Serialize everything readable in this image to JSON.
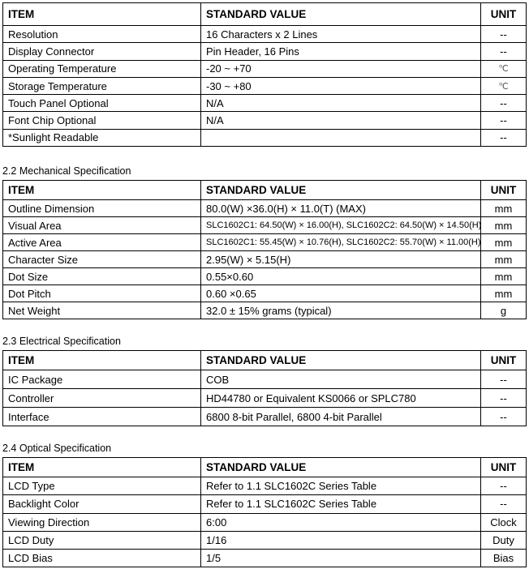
{
  "headers": {
    "item": "ITEM",
    "value": "STANDARD VALUE",
    "unit": "UNIT"
  },
  "tables": [
    {
      "title": "",
      "rows": [
        {
          "item": "Resolution",
          "value": "16 Characters x 2 Lines",
          "unit": "--"
        },
        {
          "item": "Display Connector",
          "value": "Pin Header, 16 Pins",
          "unit": "--"
        },
        {
          "item": "Operating Temperature",
          "value": "-20 ~ +70",
          "unit": "℃"
        },
        {
          "item": "Storage Temperature",
          "value": "-30 ~ +80",
          "unit": "℃"
        },
        {
          "item": "Touch Panel Optional",
          "value": "N/A",
          "unit": "--"
        },
        {
          "item": "Font Chip Optional",
          "value": "N/A",
          "unit": "--"
        },
        {
          "item": "*Sunlight Readable",
          "value": "",
          "unit": "--"
        }
      ]
    },
    {
      "title": "2.2 Mechanical Specification",
      "rows": [
        {
          "item": "Outline Dimension",
          "value": "80.0(W) ×36.0(H) × 11.0(T) (MAX)",
          "unit": "mm"
        },
        {
          "item": "Visual Area",
          "value": "SLC1602C1: 64.50(W) × 16.00(H), SLC1602C2: 64.50(W) × 14.50(H)",
          "unit": "mm",
          "small": true
        },
        {
          "item": "Active Area",
          "value": "SLC1602C1: 55.45(W) × 10.76(H), SLC1602C2: 55.70(W) × 11.00(H)",
          "unit": "mm",
          "small": true
        },
        {
          "item": "Character Size",
          "value": "2.95(W) × 5.15(H)",
          "unit": "mm"
        },
        {
          "item": "Dot Size",
          "value": "0.55×0.60",
          "unit": "mm"
        },
        {
          "item": "Dot Pitch",
          "value": "0.60 ×0.65",
          "unit": "mm"
        },
        {
          "item": "Net Weight",
          "value": "32.0 ± 15% grams (typical)",
          "unit": "g"
        }
      ]
    },
    {
      "title": "2.3 Electrical Specification",
      "rows": [
        {
          "item": "IC Package",
          "value": "COB",
          "unit": "--"
        },
        {
          "item": "Controller",
          "value": "HD44780 or Equivalent KS0066 or SPLC780",
          "unit": "--"
        },
        {
          "item": "Interface",
          "value": "6800 8-bit Parallel, 6800 4-bit Parallel",
          "unit": "--"
        }
      ]
    },
    {
      "title": "2.4 Optical Specification",
      "rows": [
        {
          "item": "LCD Type",
          "value": "Refer to 1.1 SLC1602C Series Table",
          "unit": "--"
        },
        {
          "item": "Backlight Color",
          "value": "Refer to 1.1 SLC1602C Series Table",
          "unit": "--"
        },
        {
          "item": "Viewing Direction",
          "value": "6:00",
          "unit": "Clock"
        },
        {
          "item": "LCD Duty",
          "value": "1/16",
          "unit": "Duty"
        },
        {
          "item": "LCD Bias",
          "value": "1/5",
          "unit": "Bias"
        }
      ]
    }
  ]
}
